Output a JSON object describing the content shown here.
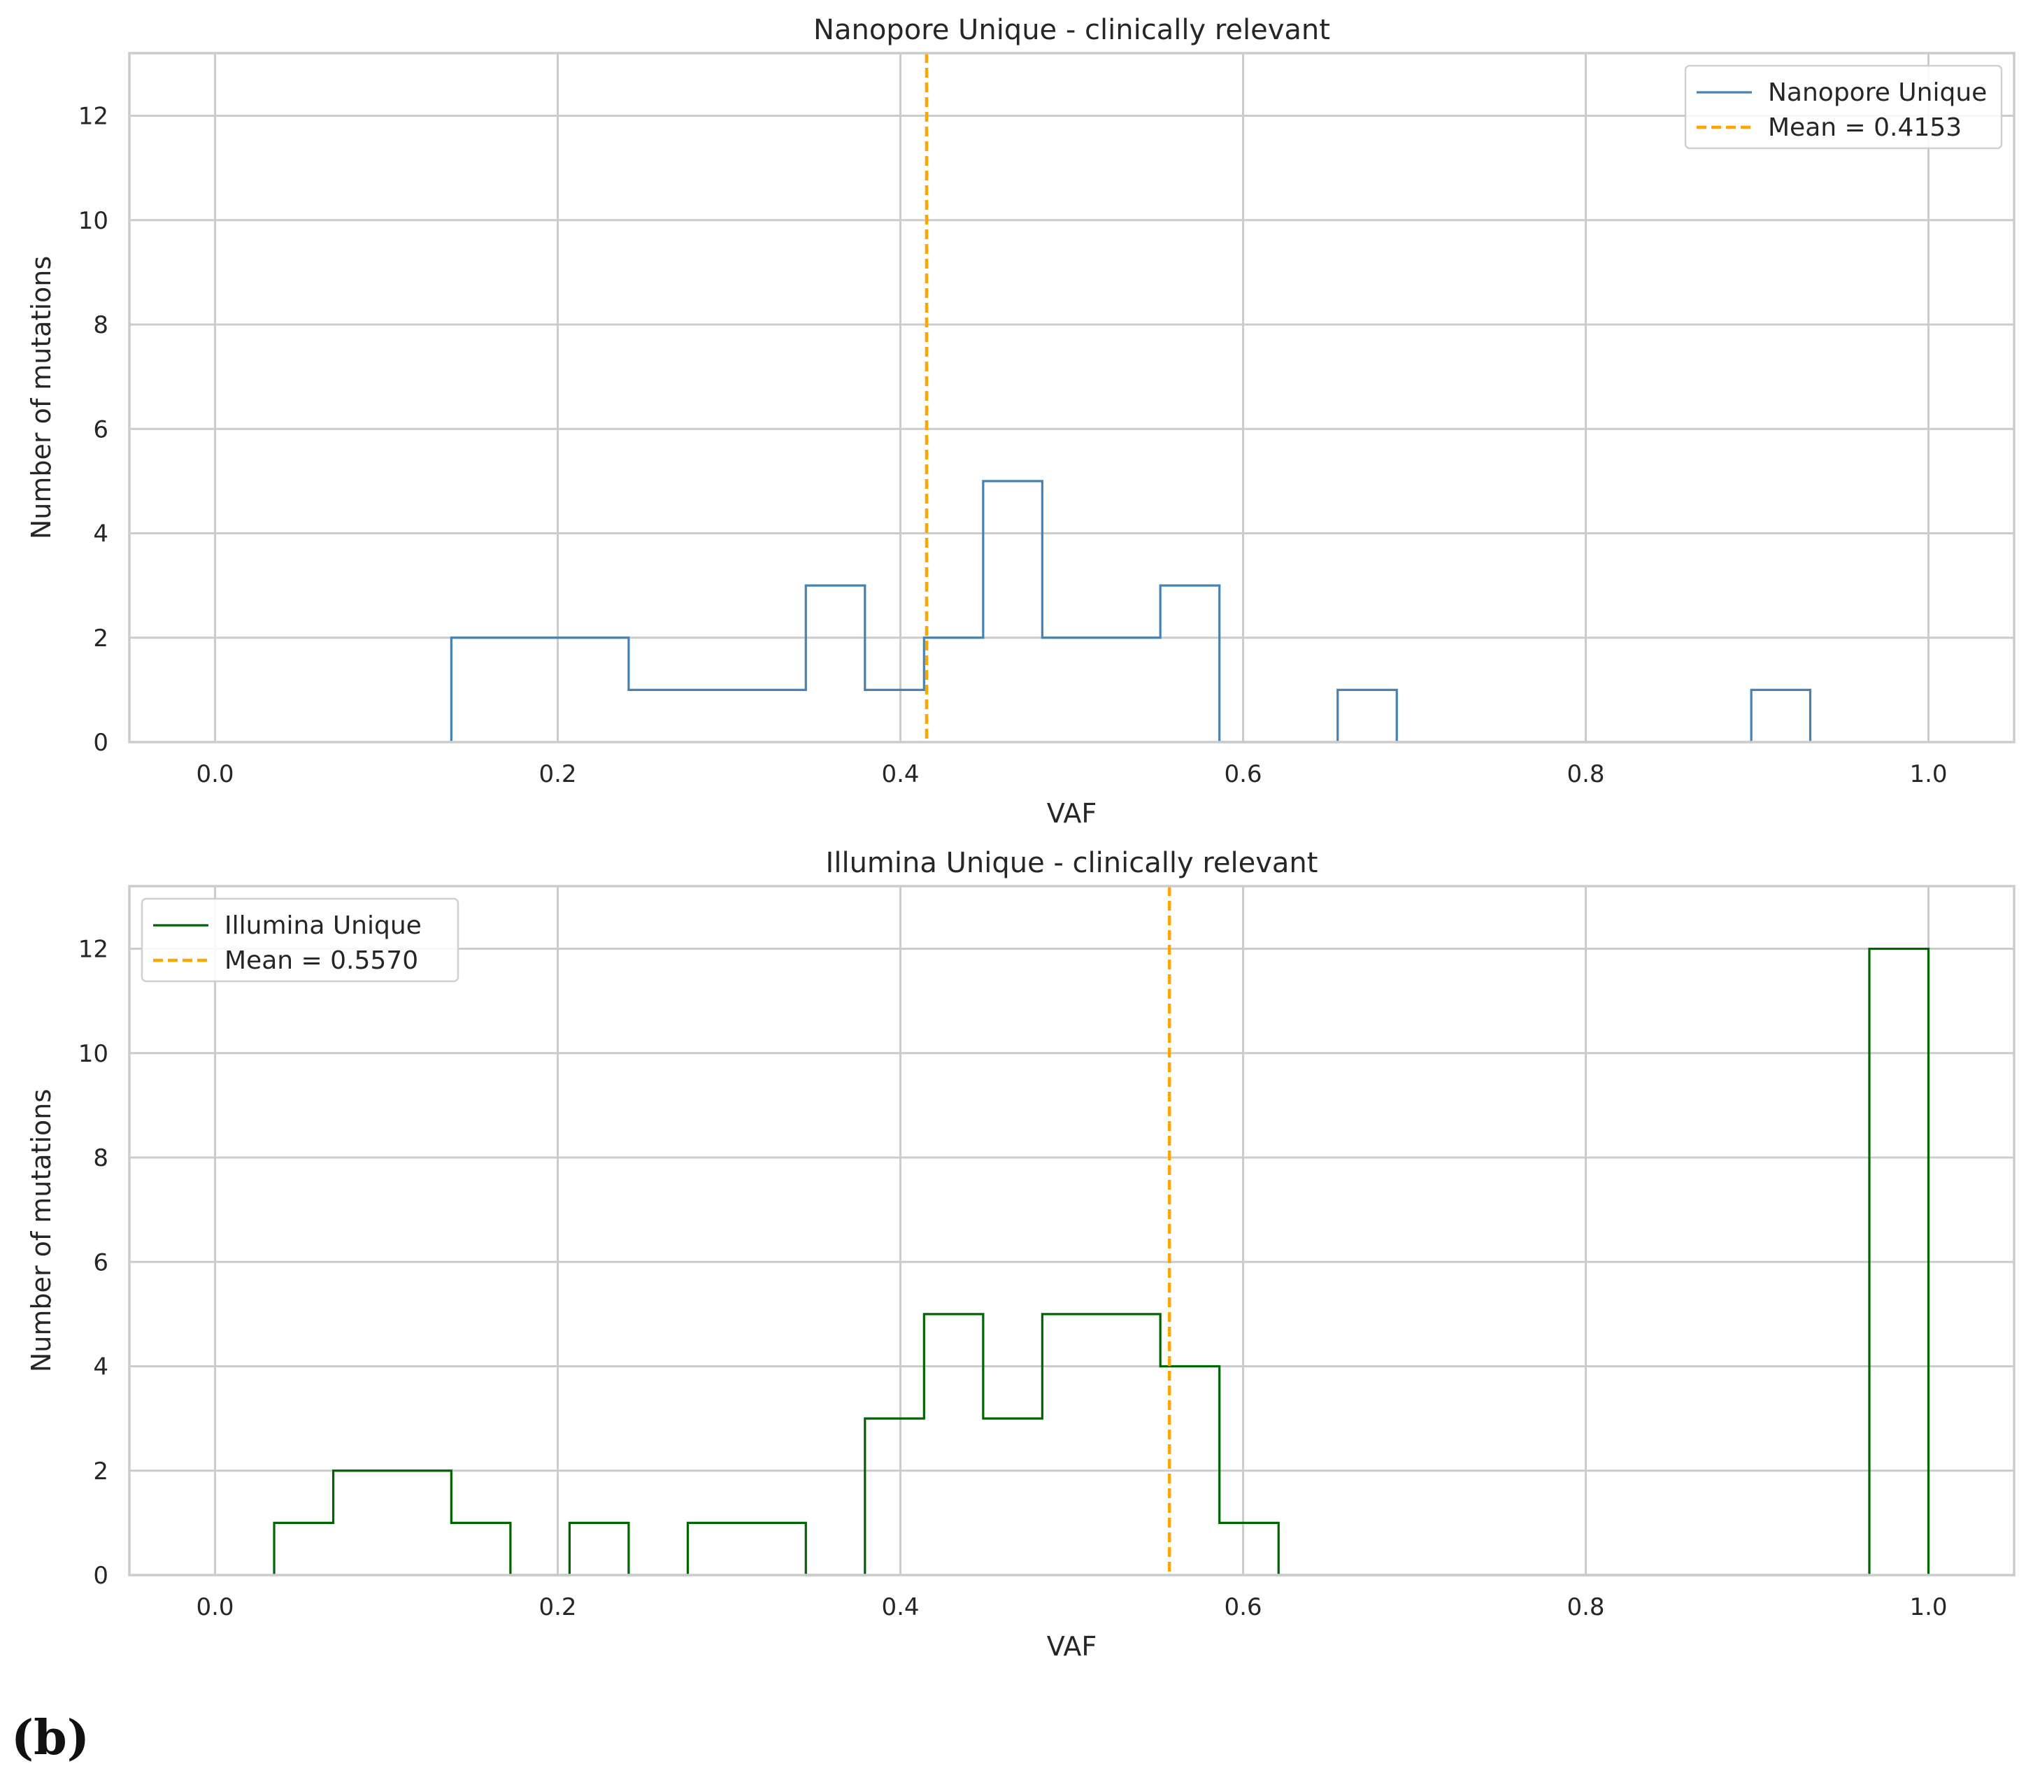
{
  "panel_label": "(b)",
  "chart_data": [
    {
      "type": "histogram-step",
      "title": "Nanopore Unique - clinically relevant",
      "xlabel": "VAF",
      "ylabel": "Number of mutations",
      "xlim": [
        -0.05,
        1.05
      ],
      "ylim": [
        0,
        13.2
      ],
      "xticks": [
        0.0,
        0.2,
        0.4,
        0.6,
        0.8,
        1.0
      ],
      "xtick_labels": [
        "0.0",
        "0.2",
        "0.4",
        "0.6",
        "0.8",
        "1.0"
      ],
      "yticks": [
        0,
        2,
        4,
        6,
        8,
        10,
        12
      ],
      "ytick_labels": [
        "0",
        "2",
        "4",
        "6",
        "8",
        "10",
        "12"
      ],
      "grid": true,
      "legend_position": "top-right",
      "series": [
        {
          "name": "Nanopore Unique",
          "color": "#4682b4",
          "bin_edges": [
            0.1379,
            0.1724,
            0.2069,
            0.2414,
            0.2759,
            0.3103,
            0.3448,
            0.3793,
            0.4138,
            0.4483,
            0.4828,
            0.5172,
            0.5517,
            0.5862,
            0.6207,
            0.6552,
            0.6897,
            0.7241,
            0.7586,
            0.7931,
            0.8276,
            0.8621,
            0.8966,
            0.931
          ],
          "counts": [
            2,
            2,
            2,
            1,
            1,
            1,
            3,
            1,
            2,
            5,
            2,
            2,
            3,
            0,
            0,
            1,
            0,
            0,
            0,
            0,
            0,
            0,
            1
          ]
        }
      ],
      "mean": {
        "value": 0.4153,
        "label": "Mean = 0.4153",
        "color": "#ffa500"
      }
    },
    {
      "type": "histogram-step",
      "title": "Illumina Unique - clinically relevant",
      "xlabel": "VAF",
      "ylabel": "Number of mutations",
      "xlim": [
        -0.05,
        1.05
      ],
      "ylim": [
        0,
        13.2
      ],
      "xticks": [
        0.0,
        0.2,
        0.4,
        0.6,
        0.8,
        1.0
      ],
      "xtick_labels": [
        "0.0",
        "0.2",
        "0.4",
        "0.6",
        "0.8",
        "1.0"
      ],
      "yticks": [
        0,
        2,
        4,
        6,
        8,
        10,
        12
      ],
      "ytick_labels": [
        "0",
        "2",
        "4",
        "6",
        "8",
        "10",
        "12"
      ],
      "grid": true,
      "legend_position": "top-left",
      "series": [
        {
          "name": "Illumina Unique",
          "color": "#006400",
          "bin_edges": [
            0.0345,
            0.069,
            0.1034,
            0.1379,
            0.1724,
            0.2069,
            0.2414,
            0.2759,
            0.3103,
            0.3448,
            0.3793,
            0.4138,
            0.4483,
            0.4828,
            0.5172,
            0.5517,
            0.5862,
            0.6207,
            0.6552,
            0.6897,
            0.7241,
            0.7586,
            0.7931,
            0.8276,
            0.8621,
            0.8966,
            0.931,
            0.9655,
            1.0
          ],
          "counts": [
            1,
            2,
            2,
            1,
            0,
            1,
            0,
            1,
            1,
            0,
            3,
            5,
            3,
            5,
            5,
            4,
            1,
            0,
            0,
            0,
            0,
            0,
            0,
            0,
            0,
            0,
            0,
            12
          ]
        }
      ],
      "mean": {
        "value": 0.557,
        "label": "Mean = 0.5570",
        "color": "#ffa500"
      }
    }
  ]
}
